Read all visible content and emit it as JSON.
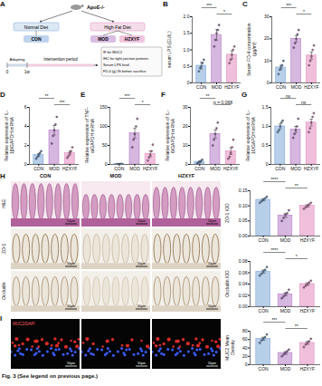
{
  "caption": "Fig. 3 (See legend on previous page.)",
  "diagram": {
    "panel": "A",
    "strain": "ApoE-/-",
    "diets": [
      "Normal Diet",
      "High-Fat Diet"
    ],
    "groups": [
      "CON",
      "MOD",
      "HZXYF"
    ],
    "timeline": {
      "marks": [
        "0",
        "1w"
      ],
      "phases": [
        "Adapting",
        "Intervention period"
      ]
    },
    "endpoints": [
      "IF for MUC2",
      "IHC for tight junction proteins",
      "Serum LPS level",
      "FD-4 (g) 3h before sacrifice"
    ]
  },
  "images": {
    "panel_h": "H",
    "panel_i": "I",
    "columns": [
      "CON",
      "MOD",
      "HZXYF"
    ],
    "rows_h": [
      "H&E",
      "ZO-1",
      "Occludin"
    ],
    "row_i": "MUC2/DAPI",
    "scale_bar": "50μm"
  },
  "chart_data": [
    {
      "type": "bar",
      "panel": "B",
      "ylabel": "serum LPS (EU/L)",
      "categories": [
        "CON",
        "MOD",
        "HZXYF"
      ],
      "values": [
        0.52,
        1.45,
        0.85
      ],
      "errors": [
        0.1,
        0.16,
        0.12
      ],
      "points": [
        [
          0.35,
          0.45,
          0.5,
          0.6,
          0.7
        ],
        [
          1.1,
          1.3,
          1.5,
          1.6,
          1.75
        ],
        [
          0.6,
          0.7,
          0.85,
          1.0,
          1.1
        ]
      ],
      "colors": [
        "#7da7d9",
        "#b57cc6",
        "#e48bc0"
      ],
      "ylim": [
        0,
        2
      ],
      "yticks": [
        0,
        0.5,
        {
          "value": 1,
          "label": "1.0"
        },
        1.5,
        {
          "value": 2,
          "label": "2.0"
        }
      ],
      "significance": [
        {
          "between": [
            "CON",
            "MOD"
          ],
          "label": "***"
        },
        {
          "between": [
            "MOD",
            "HZXYF"
          ],
          "label": "*"
        }
      ]
    },
    {
      "type": "bar",
      "panel": "C",
      "ylabel": "Serum FD-4 concentration (μg/ml)",
      "categories": [
        "CON",
        "MOD",
        "HZXYF"
      ],
      "values": [
        7,
        20,
        12.4
      ],
      "errors": [
        1,
        1.4,
        1.6
      ],
      "points": [
        [
          4,
          6,
          7,
          8,
          10
        ],
        [
          16,
          18,
          20,
          22,
          24
        ],
        [
          8,
          10,
          12,
          15,
          17
        ]
      ],
      "colors": [
        "#7da7d9",
        "#b57cc6",
        "#e48bc0"
      ],
      "ylim": [
        0,
        30
      ],
      "yticks": [
        0,
        10,
        20,
        30
      ],
      "significance": [
        {
          "between": [
            "CON",
            "MOD"
          ],
          "label": "***"
        },
        {
          "between": [
            "MOD",
            "HZXYF"
          ],
          "label": "*"
        }
      ]
    },
    {
      "type": "bar",
      "panel": "D",
      "ylabel": "Relative expression of IL-1β/GAPDH mRNA",
      "categories": [
        "CON",
        "MOD",
        "HZXYF"
      ],
      "values": [
        1,
        3.6,
        1.2
      ],
      "errors": [
        0.14,
        0.5,
        0.19
      ],
      "points": [
        [
          0.6,
          0.8,
          1,
          1.2,
          1.4
        ],
        [
          2.2,
          3,
          3.6,
          4.2,
          5
        ],
        [
          0.7,
          0.9,
          1.2,
          1.4,
          1.8
        ]
      ],
      "colors": [
        "#7da7d9",
        "#b57cc6",
        "#e48bc0"
      ],
      "ylim": [
        0,
        6
      ],
      "yticks": [
        0,
        2,
        4,
        6
      ],
      "significance": [
        {
          "between": [
            "CON",
            "MOD"
          ],
          "label": "**"
        },
        {
          "between": [
            "MOD",
            "HZXYF"
          ],
          "label": "***"
        }
      ]
    },
    {
      "type": "bar",
      "panel": "E",
      "ylabel": "Relative expression of TNF-α/GAPDH mRNA",
      "categories": [
        "CON",
        "MOD",
        "HZXYF"
      ],
      "values": [
        1,
        82,
        28
      ],
      "errors": [
        0.17,
        13,
        7.4
      ],
      "points": [
        [
          0.5,
          0.8,
          1,
          1.2,
          1.5
        ],
        [
          45,
          65,
          80,
          100,
          120
        ],
        [
          10,
          18,
          25,
          35,
          52
        ]
      ],
      "colors": [
        "#7da7d9",
        "#b57cc6",
        "#e48bc0"
      ],
      "ylim": [
        0,
        150
      ],
      "yticks": [
        0,
        50,
        100,
        150
      ],
      "significance": [
        {
          "between": [
            "CON",
            "MOD"
          ],
          "label": "***"
        },
        {
          "between": [
            "MOD",
            "HZXYF"
          ],
          "label": "*"
        }
      ]
    },
    {
      "type": "bar",
      "panel": "F",
      "ylabel": "Relative expression of IL-6/GAPDH mRNA",
      "categories": [
        "CON",
        "MOD",
        "HZXYF"
      ],
      "values": [
        1.4,
        16,
        7
      ],
      "errors": [
        0.35,
        2.1,
        1.8
      ],
      "points": [
        [
          0.5,
          1,
          1.2,
          1.8,
          2.5
        ],
        [
          10,
          13,
          16,
          19,
          22
        ],
        [
          3,
          4,
          6,
          9,
          13
        ]
      ],
      "colors": [
        "#7da7d9",
        "#b57cc6",
        "#e48bc0"
      ],
      "ylim": [
        0,
        30
      ],
      "yticks": [
        0,
        10,
        20,
        30
      ],
      "significance": [
        {
          "between": [
            "CON",
            "MOD"
          ],
          "label": "**"
        },
        {
          "between": [
            "MOD",
            "HZXYF"
          ],
          "label": "p = 0.068"
        }
      ]
    },
    {
      "type": "bar",
      "panel": "G",
      "ylabel": "Relative expression of IL-10/GAPDH mRNA",
      "categories": [
        "CON",
        "MOD",
        "HZXYF"
      ],
      "values": [
        1,
        0.92,
        1.1
      ],
      "errors": [
        0.06,
        0.08,
        0.09
      ],
      "points": [
        [
          0.85,
          0.9,
          1,
          1.1,
          1.15
        ],
        [
          0.7,
          0.8,
          0.9,
          1.0,
          1.2
        ],
        [
          0.85,
          0.95,
          1.1,
          1.25,
          1.35
        ]
      ],
      "colors": [
        "#7da7d9",
        "#b57cc6",
        "#e48bc0"
      ],
      "ylim": [
        0,
        1.5
      ],
      "yticks": [
        0,
        0.5,
        {
          "value": 1,
          "label": "1.0"
        },
        1.5
      ],
      "significance": [
        {
          "between": [
            "CON",
            "MOD"
          ],
          "label": "ns"
        },
        {
          "between": [
            "MOD",
            "HZXYF"
          ],
          "label": "ns"
        }
      ]
    },
    {
      "type": "bar",
      "ylabel": "ZO-1 IOD",
      "categories": [
        "CON",
        "MOD",
        "HZXYF"
      ],
      "values": [
        0.12,
        0.068,
        0.1
      ],
      "errors": [
        0.0035,
        0.006,
        0.0035
      ],
      "points": [
        [
          0.11,
          0.115,
          0.12,
          0.125,
          0.13
        ],
        [
          0.05,
          0.06,
          0.07,
          0.075,
          0.085
        ],
        [
          0.09,
          0.095,
          0.1,
          0.105,
          0.11
        ]
      ],
      "colors": [
        "#7da7d9",
        "#b57cc6",
        "#e48bc0"
      ],
      "ylim": [
        0,
        0.15
      ],
      "yticks": [
        {
          "value": 0,
          "label": "0.00"
        },
        0.05,
        {
          "value": 0.1,
          "label": "0.10"
        },
        0.15
      ],
      "significance": [
        {
          "between": [
            "CON",
            "MOD"
          ],
          "label": "****"
        },
        {
          "between": [
            "MOD",
            "HZXYF"
          ],
          "label": "**"
        }
      ]
    },
    {
      "type": "bar",
      "ylabel": "Occludin IOD",
      "categories": [
        "CON",
        "MOD",
        "HZXYF"
      ],
      "values": [
        0.062,
        0.022,
        0.04
      ],
      "errors": [
        0.0026,
        0.0026,
        0.0021
      ],
      "points": [
        [
          0.055,
          0.058,
          0.062,
          0.065,
          0.07
        ],
        [
          0.015,
          0.018,
          0.022,
          0.025,
          0.03
        ],
        [
          0.034,
          0.037,
          0.04,
          0.043,
          0.046
        ]
      ],
      "colors": [
        "#7da7d9",
        "#b57cc6",
        "#e48bc0"
      ],
      "ylim": [
        0,
        0.08
      ],
      "yticks": [
        {
          "value": 0,
          "label": "0.00"
        },
        0.02,
        0.04,
        0.06,
        0.08
      ],
      "significance": [
        {
          "between": [
            "CON",
            "MOD"
          ],
          "label": "****"
        },
        {
          "between": [
            "MOD",
            "HZXYF"
          ],
          "label": "*"
        }
      ]
    },
    {
      "type": "bar",
      "ylabel": "MUC2 Mean Density",
      "categories": [
        "CON",
        "MOD",
        "HZXYF"
      ],
      "values": [
        62,
        28,
        52
      ],
      "errors": [
        3.4,
        2.8,
        3.4
      ],
      "points": [
        [
          52,
          58,
          62,
          66,
          72
        ],
        [
          20,
          24,
          28,
          32,
          36
        ],
        [
          42,
          48,
          52,
          56,
          62
        ]
      ],
      "colors": [
        "#7da7d9",
        "#b57cc6",
        "#e48bc0"
      ],
      "ylim": [
        0,
        80
      ],
      "yticks": [
        0,
        20,
        40,
        60,
        80
      ],
      "significance": [
        {
          "between": [
            "CON",
            "MOD"
          ],
          "label": "***"
        },
        {
          "between": [
            "MOD",
            "HZXYF"
          ],
          "label": "**"
        }
      ]
    }
  ]
}
